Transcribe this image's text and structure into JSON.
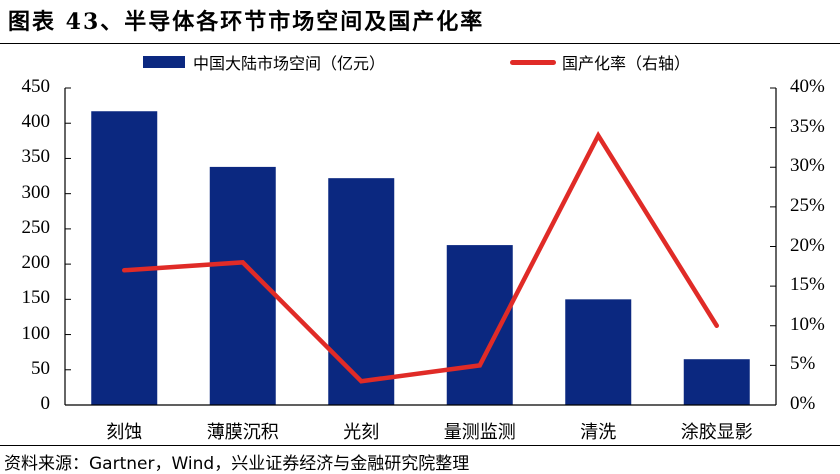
{
  "title": "图表 43、半导体各环节市场空间及国产化率",
  "source": "资料来源：Gartner，Wind，兴业证券经济与金融研究院整理",
  "colors": {
    "bar": "#0b2880",
    "line": "#e02b27",
    "axis": "#000000"
  },
  "legend": [
    {
      "label": "中国大陆市场空间（亿元）",
      "type": "bar"
    },
    {
      "label": "国产化率（右轴）",
      "type": "line"
    }
  ],
  "chart_data": {
    "type": "bar",
    "title": "图表 43、半导体各环节市场空间及国产化率",
    "categories": [
      "刻蚀",
      "薄膜沉积",
      "光刻",
      "量测监测",
      "清洗",
      "涂胶显影"
    ],
    "series": [
      {
        "name": "中国大陆市场空间（亿元）",
        "type": "bar",
        "axis": "left",
        "values": [
          417,
          338,
          322,
          227,
          150,
          65
        ]
      },
      {
        "name": "国产化率（右轴）",
        "type": "line",
        "axis": "right",
        "values": [
          0.17,
          0.18,
          0.03,
          0.05,
          0.34,
          0.1
        ]
      }
    ],
    "ylim_left": [
      0,
      450
    ],
    "yticks_left": [
      "0",
      "50",
      "100",
      "150",
      "200",
      "250",
      "300",
      "350",
      "400",
      "450"
    ],
    "ylim_right": [
      0,
      0.4
    ],
    "yticks_right": [
      "0%",
      "5%",
      "10%",
      "15%",
      "20%",
      "25%",
      "30%",
      "35%",
      "40%"
    ],
    "xlabel": "",
    "ylabel": "",
    "grid": false,
    "legend_position": "top"
  }
}
